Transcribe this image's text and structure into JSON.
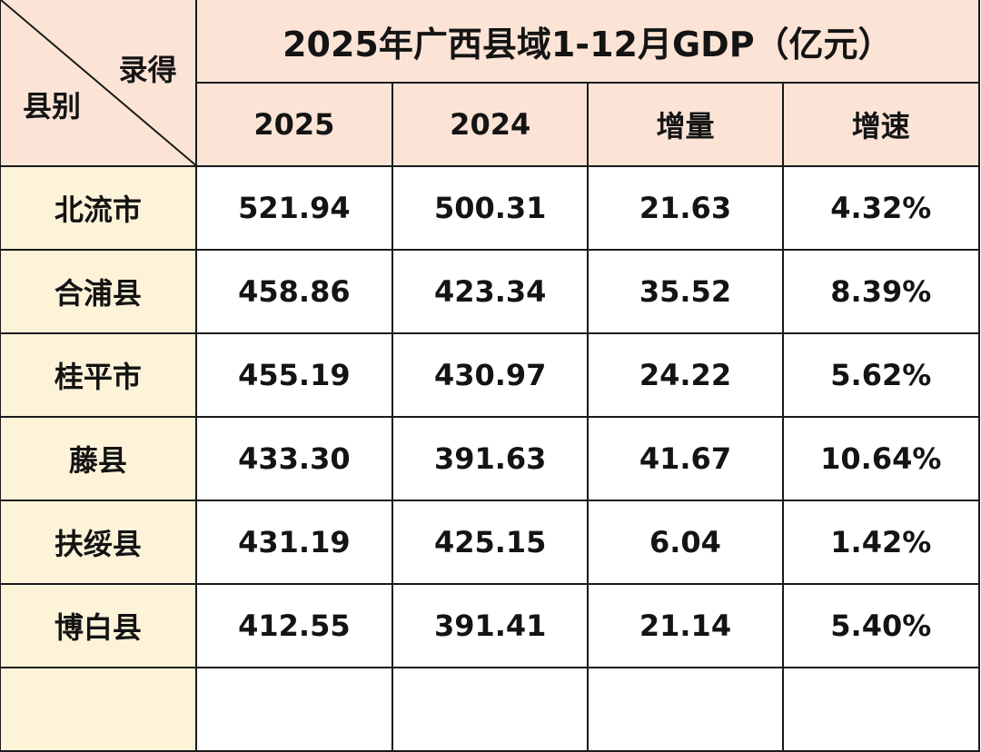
{
  "table": {
    "title": "2025年广西县域1-12月GDP（亿元）",
    "corner_top": "录得",
    "corner_bottom": "县别",
    "columns": [
      "2025",
      "2024",
      "增量",
      "增速"
    ],
    "rows": [
      {
        "name": "北流市",
        "values": [
          "521.94",
          "500.31",
          "21.63",
          "4.32%"
        ]
      },
      {
        "name": "合浦县",
        "values": [
          "458.86",
          "423.34",
          "35.52",
          "8.39%"
        ]
      },
      {
        "name": "桂平市",
        "values": [
          "455.19",
          "430.97",
          "24.22",
          "5.62%"
        ]
      },
      {
        "name": "藤县",
        "values": [
          "433.30",
          "391.63",
          "41.67",
          "10.64%"
        ]
      },
      {
        "name": "扶绥县",
        "values": [
          "431.19",
          "425.15",
          "6.04",
          "1.42%"
        ]
      },
      {
        "name": "博白县",
        "values": [
          "412.55",
          "391.41",
          "21.14",
          "5.40%"
        ]
      }
    ]
  },
  "colors": {
    "header_bg": "#fbe4d6",
    "name_col_bg": "#fdf3d9",
    "border": "#1a1a1a"
  }
}
